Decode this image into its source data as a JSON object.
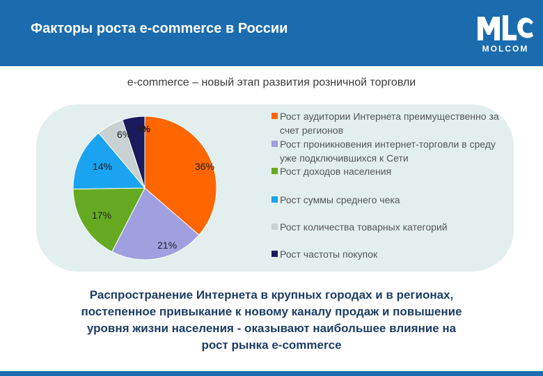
{
  "header": {
    "title": "Факторы роста e-commerce в России",
    "logo_text": "MOLCOM",
    "background": "#1b6cae"
  },
  "chart_data": {
    "type": "pie",
    "title": "e-commerce – новый этап развития розничной торговли",
    "legend_position": "right",
    "slices": [
      {
        "label": "Рост аудитории Интернета преимущественно за счет регионов",
        "value": 36,
        "display": "36%",
        "color": "#ff6600"
      },
      {
        "label": "Рост проникновения интернет-торговли в среду уже подключившихся к Сети",
        "value": 21,
        "display": "21%",
        "color": "#a0a0e0"
      },
      {
        "label": "Рост доходов населения",
        "value": 17,
        "display": "17%",
        "color": "#66aa22"
      },
      {
        "label": "Рост суммы среднего чека",
        "value": 14,
        "display": "14%",
        "color": "#1aa3f0"
      },
      {
        "label": "Рост количества товарных категорий",
        "value": 6,
        "display": "6%",
        "color": "#c8d2d2"
      },
      {
        "label": "Рост частоты покупок",
        "value": 5,
        "display": "5%",
        "color": "#1a1a5e"
      }
    ]
  },
  "conclusion": {
    "lines": [
      "Распространение Интернета в крупных городах и в регионах,",
      "постепенное привыкание к новому каналу продаж и повышение",
      "уровня жизни населения - оказывают наибольшее влияние на",
      "рост рынка e-commerce"
    ]
  }
}
